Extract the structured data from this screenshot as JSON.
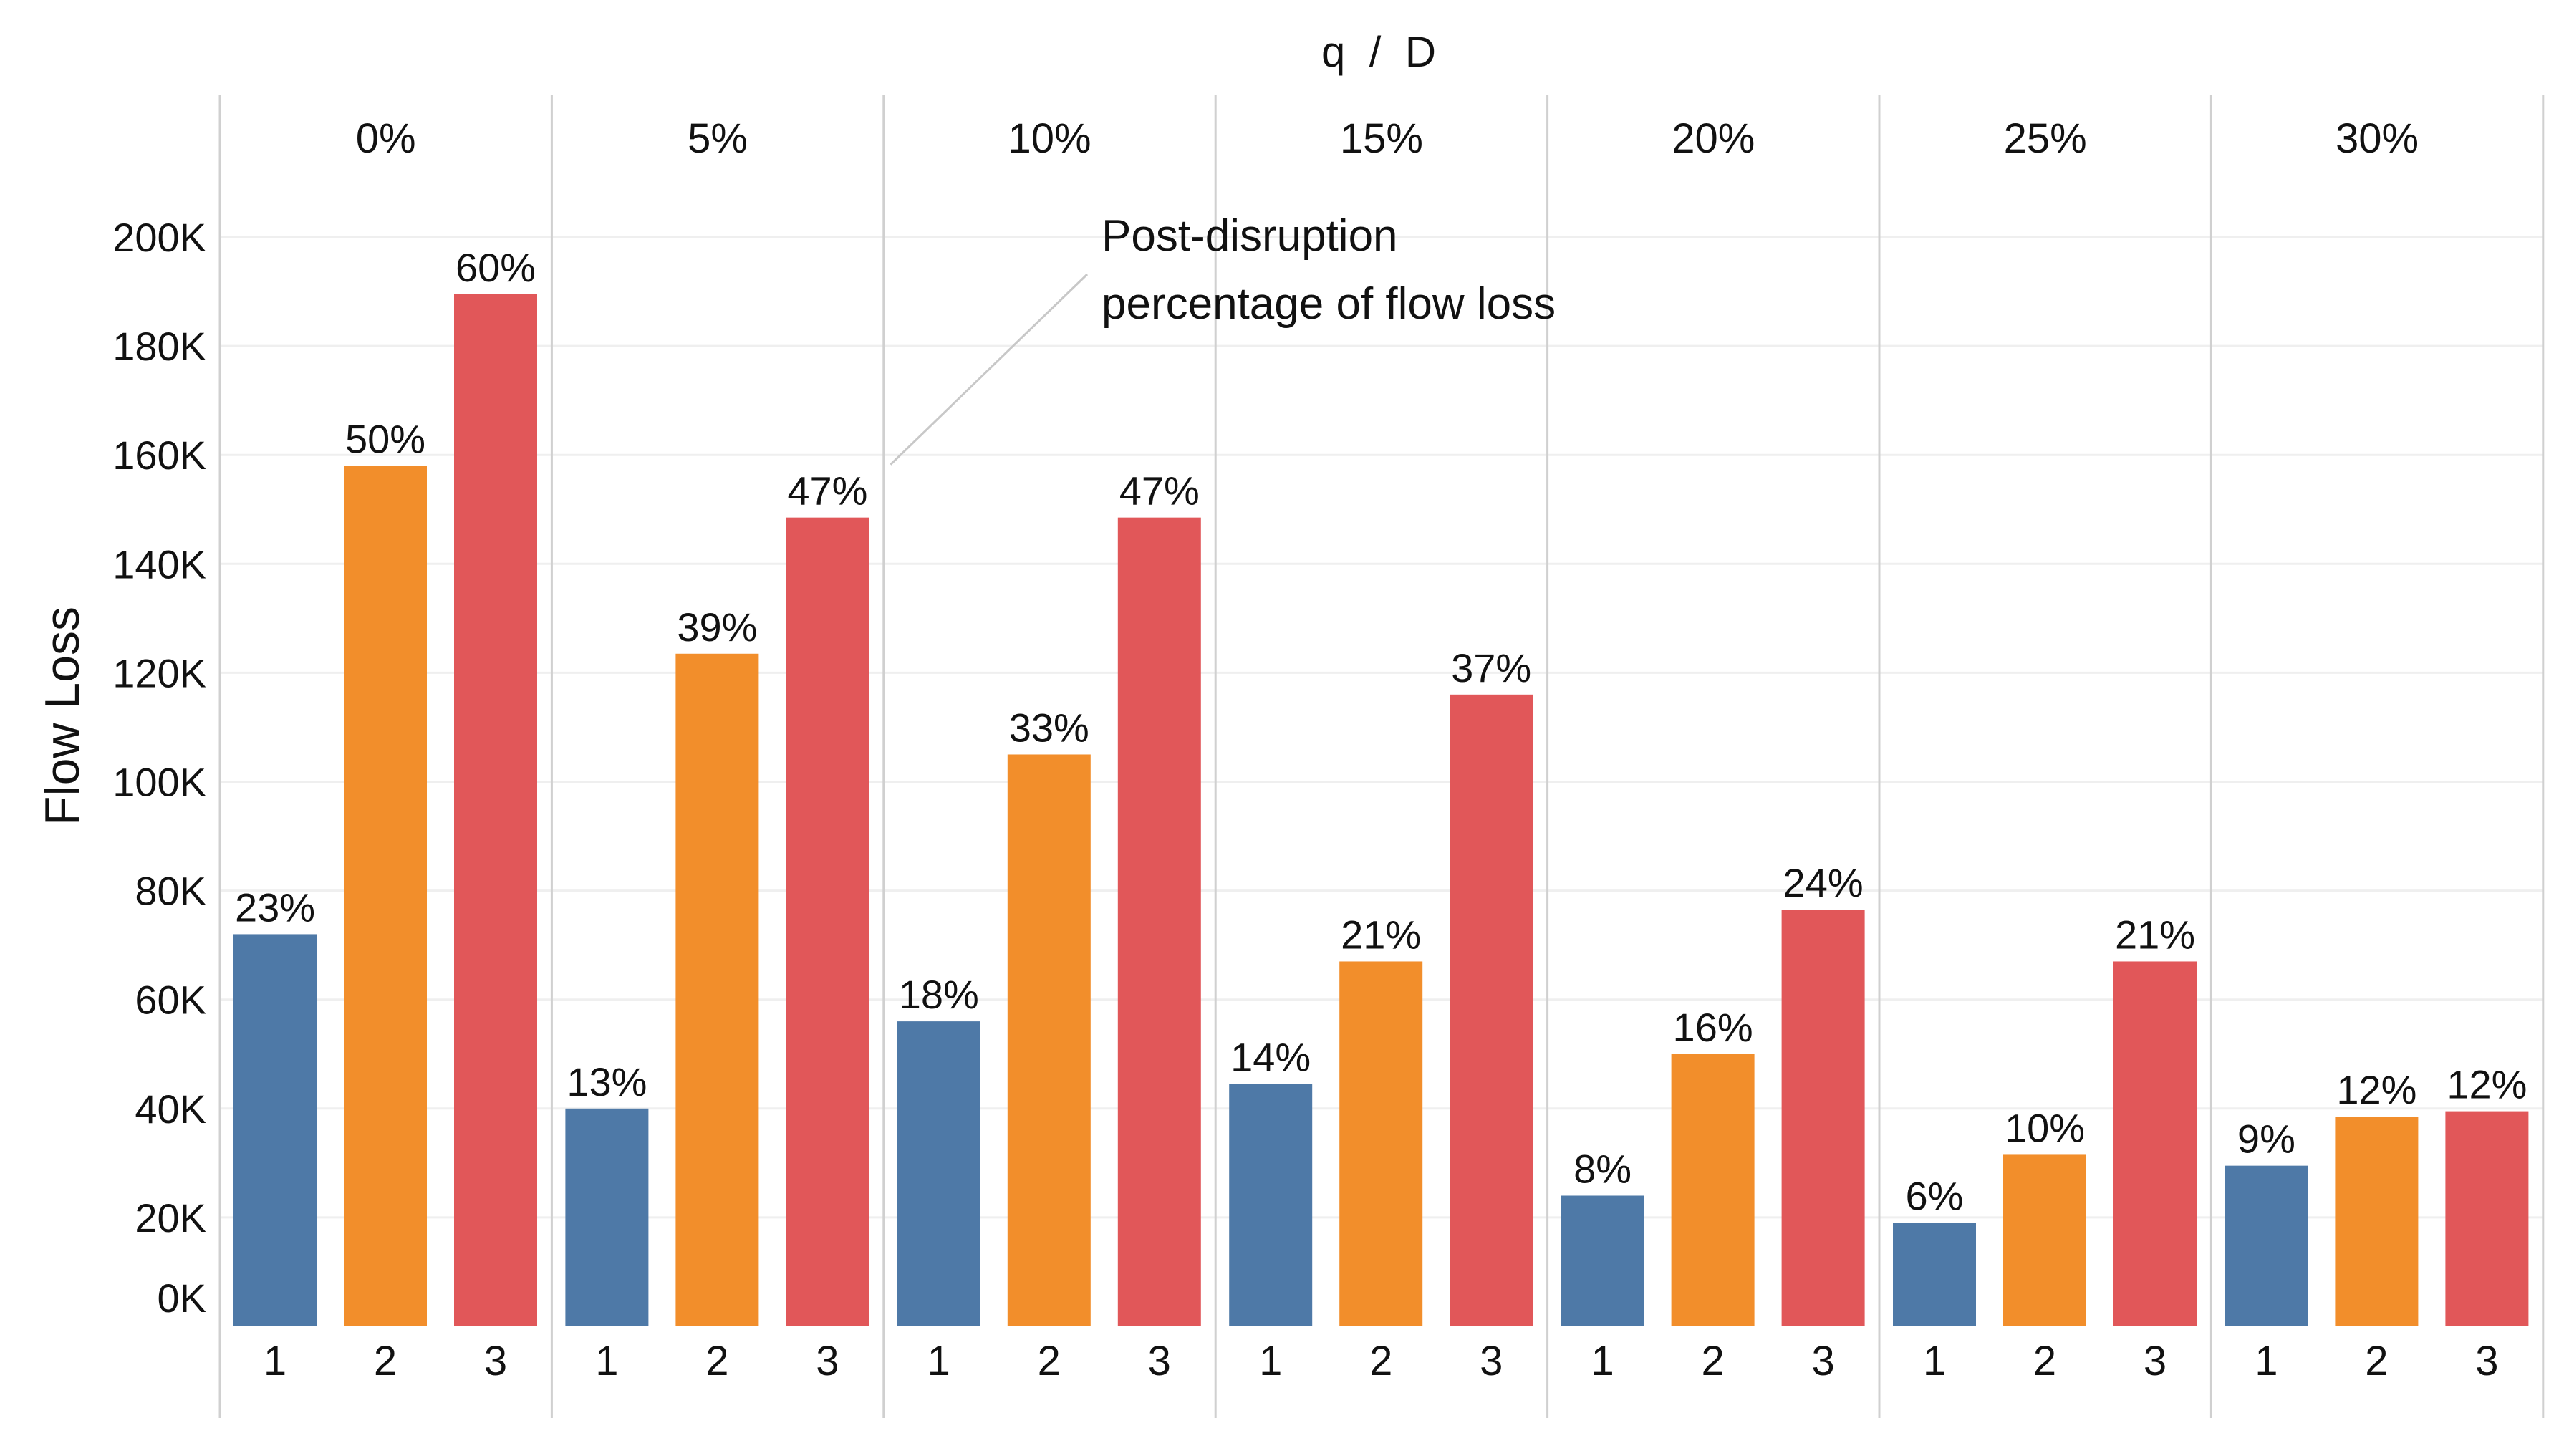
{
  "chart_data": {
    "type": "bar",
    "title": "q  /  D",
    "ylabel": "Flow Loss",
    "xlabel": "",
    "ylim": [
      0,
      200000
    ],
    "y_ticks": [
      {
        "value": 0,
        "label": "0K"
      },
      {
        "value": 20000,
        "label": "20K"
      },
      {
        "value": 40000,
        "label": "40K"
      },
      {
        "value": 60000,
        "label": "60K"
      },
      {
        "value": 80000,
        "label": "80K"
      },
      {
        "value": 100000,
        "label": "100K"
      },
      {
        "value": 120000,
        "label": "120K"
      },
      {
        "value": 140000,
        "label": "140K"
      },
      {
        "value": 160000,
        "label": "160K"
      },
      {
        "value": 180000,
        "label": "180K"
      },
      {
        "value": 200000,
        "label": "200K"
      }
    ],
    "grid": true,
    "facet_labels": [
      "0%",
      "5%",
      "10%",
      "15%",
      "20%",
      "25%",
      "30%"
    ],
    "categories": [
      "1",
      "2",
      "3"
    ],
    "colors": {
      "1": "#4e79a7",
      "2": "#f28e2b",
      "3": "#e15759"
    },
    "facets": [
      {
        "values": [
          72000,
          158000,
          189500
        ],
        "labels": [
          "23%",
          "50%",
          "60%"
        ]
      },
      {
        "values": [
          40000,
          123500,
          148500
        ],
        "labels": [
          "13%",
          "39%",
          "47%"
        ]
      },
      {
        "values": [
          56000,
          105000,
          148500
        ],
        "labels": [
          "18%",
          "33%",
          "47%"
        ]
      },
      {
        "values": [
          44500,
          67000,
          116000
        ],
        "labels": [
          "14%",
          "21%",
          "37%"
        ]
      },
      {
        "values": [
          24000,
          50000,
          76500
        ],
        "labels": [
          "8%",
          "16%",
          "24%"
        ]
      },
      {
        "values": [
          19000,
          31500,
          67000
        ],
        "labels": [
          "6%",
          "10%",
          "21%"
        ]
      },
      {
        "values": [
          29500,
          38500,
          39500
        ],
        "labels": [
          "9%",
          "12%",
          "12%"
        ]
      }
    ],
    "annotation": {
      "lines": [
        "Post-disruption",
        "percentage of flow loss"
      ],
      "target_facet": 1,
      "target_bar": 2
    }
  }
}
